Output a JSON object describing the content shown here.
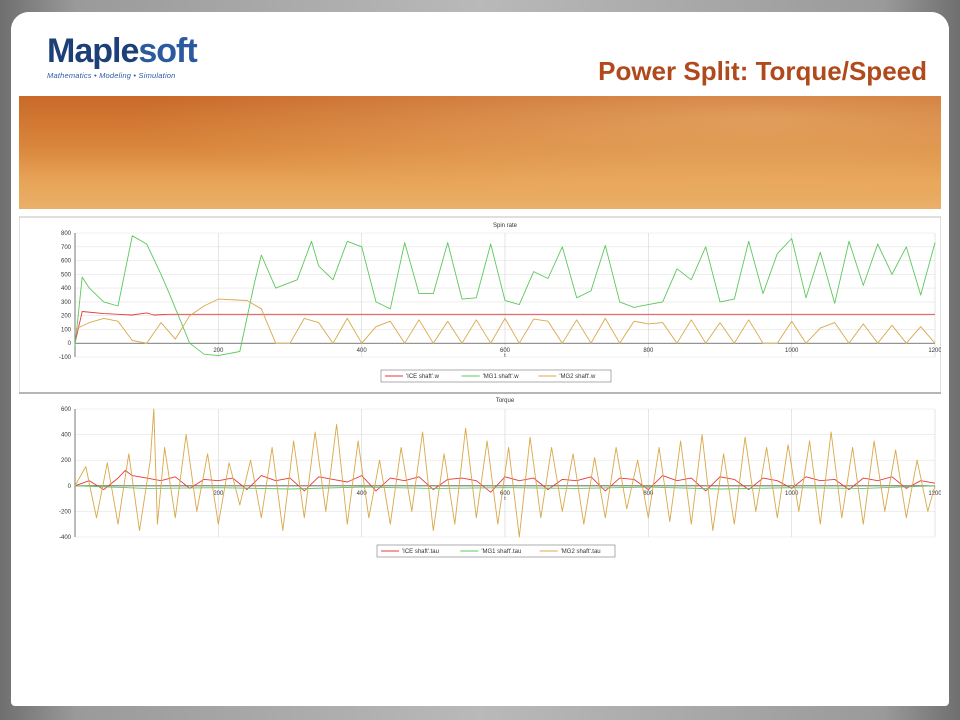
{
  "slide": {
    "title": "Power Split: Torque/Speed",
    "logo": {
      "word_main": "Maple",
      "word_soft": "soft",
      "tagline": "Mathematics • Modeling • Simulation"
    }
  },
  "colors": {
    "ice": "#e8393a",
    "mg1": "#5cc85c",
    "mg2": "#d9a84a",
    "title": "#b04a1d",
    "logo": "#1d3f78"
  },
  "chart_data": [
    {
      "type": "line",
      "title": "Spin rate",
      "xlabel": "t",
      "ylabel": "",
      "xlim": [
        0,
        1200
      ],
      "ylim": [
        -100,
        800
      ],
      "xticks": [
        200,
        400,
        600,
        800,
        1000,
        1200
      ],
      "yticks": [
        -100,
        0,
        100,
        200,
        300,
        400,
        500,
        600,
        700,
        800
      ],
      "grid": true,
      "legend": "bottom",
      "series": [
        {
          "name": "'ICE shaft'.w",
          "color": "#e8393a",
          "x": [
            0,
            10,
            40,
            80,
            100,
            110,
            130,
            180,
            200,
            300,
            400,
            500,
            600,
            700,
            800,
            900,
            1000,
            1100,
            1200
          ],
          "y": [
            0,
            230,
            215,
            205,
            220,
            205,
            210,
            210,
            210,
            210,
            210,
            210,
            210,
            210,
            210,
            210,
            210,
            210,
            210
          ]
        },
        {
          "name": "'MG1 shaft'.w",
          "color": "#5cc85c",
          "x": [
            0,
            10,
            20,
            40,
            60,
            80,
            100,
            120,
            130,
            160,
            180,
            200,
            230,
            250,
            260,
            280,
            310,
            330,
            340,
            360,
            380,
            400,
            420,
            440,
            460,
            480,
            500,
            520,
            540,
            560,
            580,
            600,
            620,
            640,
            660,
            680,
            700,
            720,
            740,
            760,
            780,
            800,
            820,
            840,
            860,
            880,
            900,
            920,
            940,
            960,
            980,
            1000,
            1020,
            1040,
            1060,
            1080,
            1100,
            1120,
            1140,
            1160,
            1180,
            1200
          ],
          "y": [
            -20,
            480,
            400,
            300,
            270,
            780,
            720,
            500,
            380,
            0,
            -80,
            -90,
            -60,
            430,
            640,
            400,
            460,
            740,
            560,
            460,
            740,
            700,
            300,
            250,
            730,
            360,
            360,
            730,
            320,
            330,
            720,
            310,
            280,
            520,
            470,
            700,
            330,
            380,
            710,
            300,
            260,
            280,
            300,
            540,
            460,
            700,
            300,
            320,
            740,
            360,
            650,
            760,
            330,
            660,
            290,
            740,
            420,
            720,
            500,
            700,
            350,
            730
          ]
        },
        {
          "name": "'MG2 shaft'.w",
          "color": "#d9a84a",
          "x": [
            0,
            20,
            40,
            60,
            80,
            100,
            120,
            140,
            160,
            180,
            200,
            240,
            260,
            280,
            300,
            320,
            340,
            360,
            380,
            400,
            420,
            440,
            460,
            480,
            500,
            520,
            540,
            560,
            580,
            600,
            620,
            640,
            660,
            680,
            700,
            720,
            740,
            760,
            780,
            800,
            820,
            840,
            860,
            880,
            900,
            920,
            940,
            960,
            980,
            1000,
            1020,
            1040,
            1060,
            1080,
            1100,
            1120,
            1140,
            1160,
            1180,
            1200
          ],
          "y": [
            100,
            150,
            180,
            160,
            20,
            0,
            150,
            30,
            200,
            270,
            320,
            310,
            250,
            0,
            0,
            180,
            150,
            0,
            180,
            0,
            120,
            160,
            0,
            170,
            0,
            160,
            0,
            170,
            0,
            180,
            0,
            175,
            160,
            0,
            170,
            0,
            180,
            0,
            160,
            140,
            150,
            0,
            170,
            0,
            150,
            0,
            170,
            0,
            0,
            160,
            0,
            110,
            150,
            0,
            140,
            0,
            130,
            0,
            120,
            0
          ]
        }
      ]
    },
    {
      "type": "line",
      "title": "Torque",
      "xlabel": "t",
      "ylabel": "",
      "xlim": [
        0,
        1200
      ],
      "ylim": [
        -400,
        600
      ],
      "xticks": [
        200,
        400,
        600,
        800,
        1000,
        1200
      ],
      "yticks": [
        -400,
        -200,
        0,
        200,
        400,
        600
      ],
      "grid": true,
      "legend": "bottom",
      "series": [
        {
          "name": "'ICE shaft'.tau",
          "color": "#e8393a",
          "x": [
            0,
            20,
            40,
            60,
            70,
            80,
            100,
            120,
            140,
            160,
            180,
            200,
            220,
            240,
            260,
            280,
            300,
            320,
            340,
            360,
            380,
            400,
            420,
            440,
            460,
            480,
            500,
            520,
            540,
            560,
            580,
            600,
            620,
            640,
            660,
            680,
            700,
            720,
            740,
            760,
            780,
            800,
            820,
            840,
            860,
            880,
            900,
            920,
            940,
            960,
            980,
            1000,
            1020,
            1040,
            1060,
            1080,
            1100,
            1120,
            1140,
            1160,
            1180,
            1200
          ],
          "y": [
            0,
            40,
            -30,
            60,
            120,
            80,
            60,
            40,
            70,
            -20,
            50,
            40,
            60,
            -30,
            80,
            40,
            60,
            -40,
            70,
            50,
            30,
            80,
            -40,
            60,
            40,
            70,
            -30,
            50,
            60,
            40,
            -50,
            70,
            40,
            60,
            -30,
            50,
            40,
            70,
            -40,
            60,
            50,
            -30,
            80,
            40,
            60,
            -40,
            70,
            50,
            -30,
            60,
            40,
            -20,
            70,
            40,
            50,
            -30,
            60,
            40,
            70,
            -20,
            40,
            20
          ]
        },
        {
          "name": "'MG1 shaft'.tau",
          "color": "#5cc85c",
          "x": [
            0,
            100,
            200,
            300,
            400,
            500,
            600,
            700,
            800,
            900,
            1000,
            1100,
            1200
          ],
          "y": [
            0,
            -20,
            -15,
            -25,
            -10,
            -20,
            -15,
            -20,
            -10,
            -25,
            -15,
            -20,
            0
          ]
        },
        {
          "name": "'MG2 shaft'.tau",
          "color": "#d9a84a",
          "x": [
            0,
            15,
            30,
            45,
            60,
            75,
            90,
            105,
            110,
            115,
            125,
            140,
            155,
            170,
            185,
            200,
            215,
            230,
            245,
            260,
            275,
            290,
            305,
            320,
            335,
            350,
            365,
            380,
            395,
            410,
            425,
            440,
            455,
            470,
            485,
            500,
            515,
            530,
            545,
            560,
            575,
            590,
            605,
            620,
            635,
            650,
            665,
            680,
            695,
            710,
            725,
            740,
            755,
            770,
            785,
            800,
            815,
            830,
            845,
            860,
            875,
            890,
            905,
            920,
            935,
            950,
            965,
            980,
            995,
            1010,
            1025,
            1040,
            1055,
            1070,
            1085,
            1100,
            1115,
            1130,
            1145,
            1160,
            1175,
            1190,
            1200
          ],
          "y": [
            0,
            150,
            -250,
            180,
            -300,
            250,
            -350,
            200,
            600,
            -300,
            300,
            -250,
            400,
            -200,
            250,
            -300,
            180,
            -150,
            200,
            -250,
            300,
            -350,
            350,
            -250,
            420,
            -200,
            480,
            -300,
            350,
            -250,
            200,
            -300,
            300,
            -200,
            420,
            -350,
            250,
            -300,
            450,
            -250,
            350,
            -300,
            300,
            -400,
            380,
            -250,
            300,
            -200,
            250,
            -300,
            220,
            -250,
            300,
            -180,
            200,
            -250,
            300,
            -280,
            350,
            -300,
            400,
            -350,
            250,
            -300,
            380,
            -200,
            300,
            -250,
            320,
            -200,
            350,
            -300,
            420,
            -250,
            300,
            -300,
            350,
            -200,
            280,
            -250,
            200,
            -200,
            0
          ]
        }
      ]
    }
  ]
}
